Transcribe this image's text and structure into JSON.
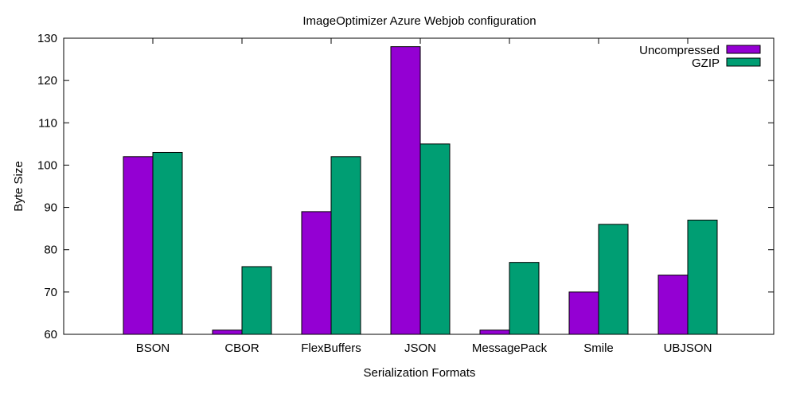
{
  "chart_data": {
    "type": "bar",
    "title": "ImageOptimizer Azure Webjob configuration",
    "xlabel": "Serialization Formats",
    "ylabel": "Byte Size",
    "ylim": [
      60,
      130
    ],
    "yticks": [
      60,
      70,
      80,
      90,
      100,
      110,
      120,
      130
    ],
    "categories": [
      "BSON",
      "CBOR",
      "FlexBuffers",
      "JSON",
      "MessagePack",
      "Smile",
      "UBJSON"
    ],
    "series": [
      {
        "name": "Uncompressed",
        "color": "#9400d3",
        "values": [
          102,
          61,
          89,
          128,
          61,
          70,
          74
        ]
      },
      {
        "name": "GZIP",
        "color": "#009e73",
        "values": [
          103,
          76,
          102,
          105,
          77,
          86,
          87
        ]
      }
    ],
    "legend": "top-right",
    "grid": false
  }
}
